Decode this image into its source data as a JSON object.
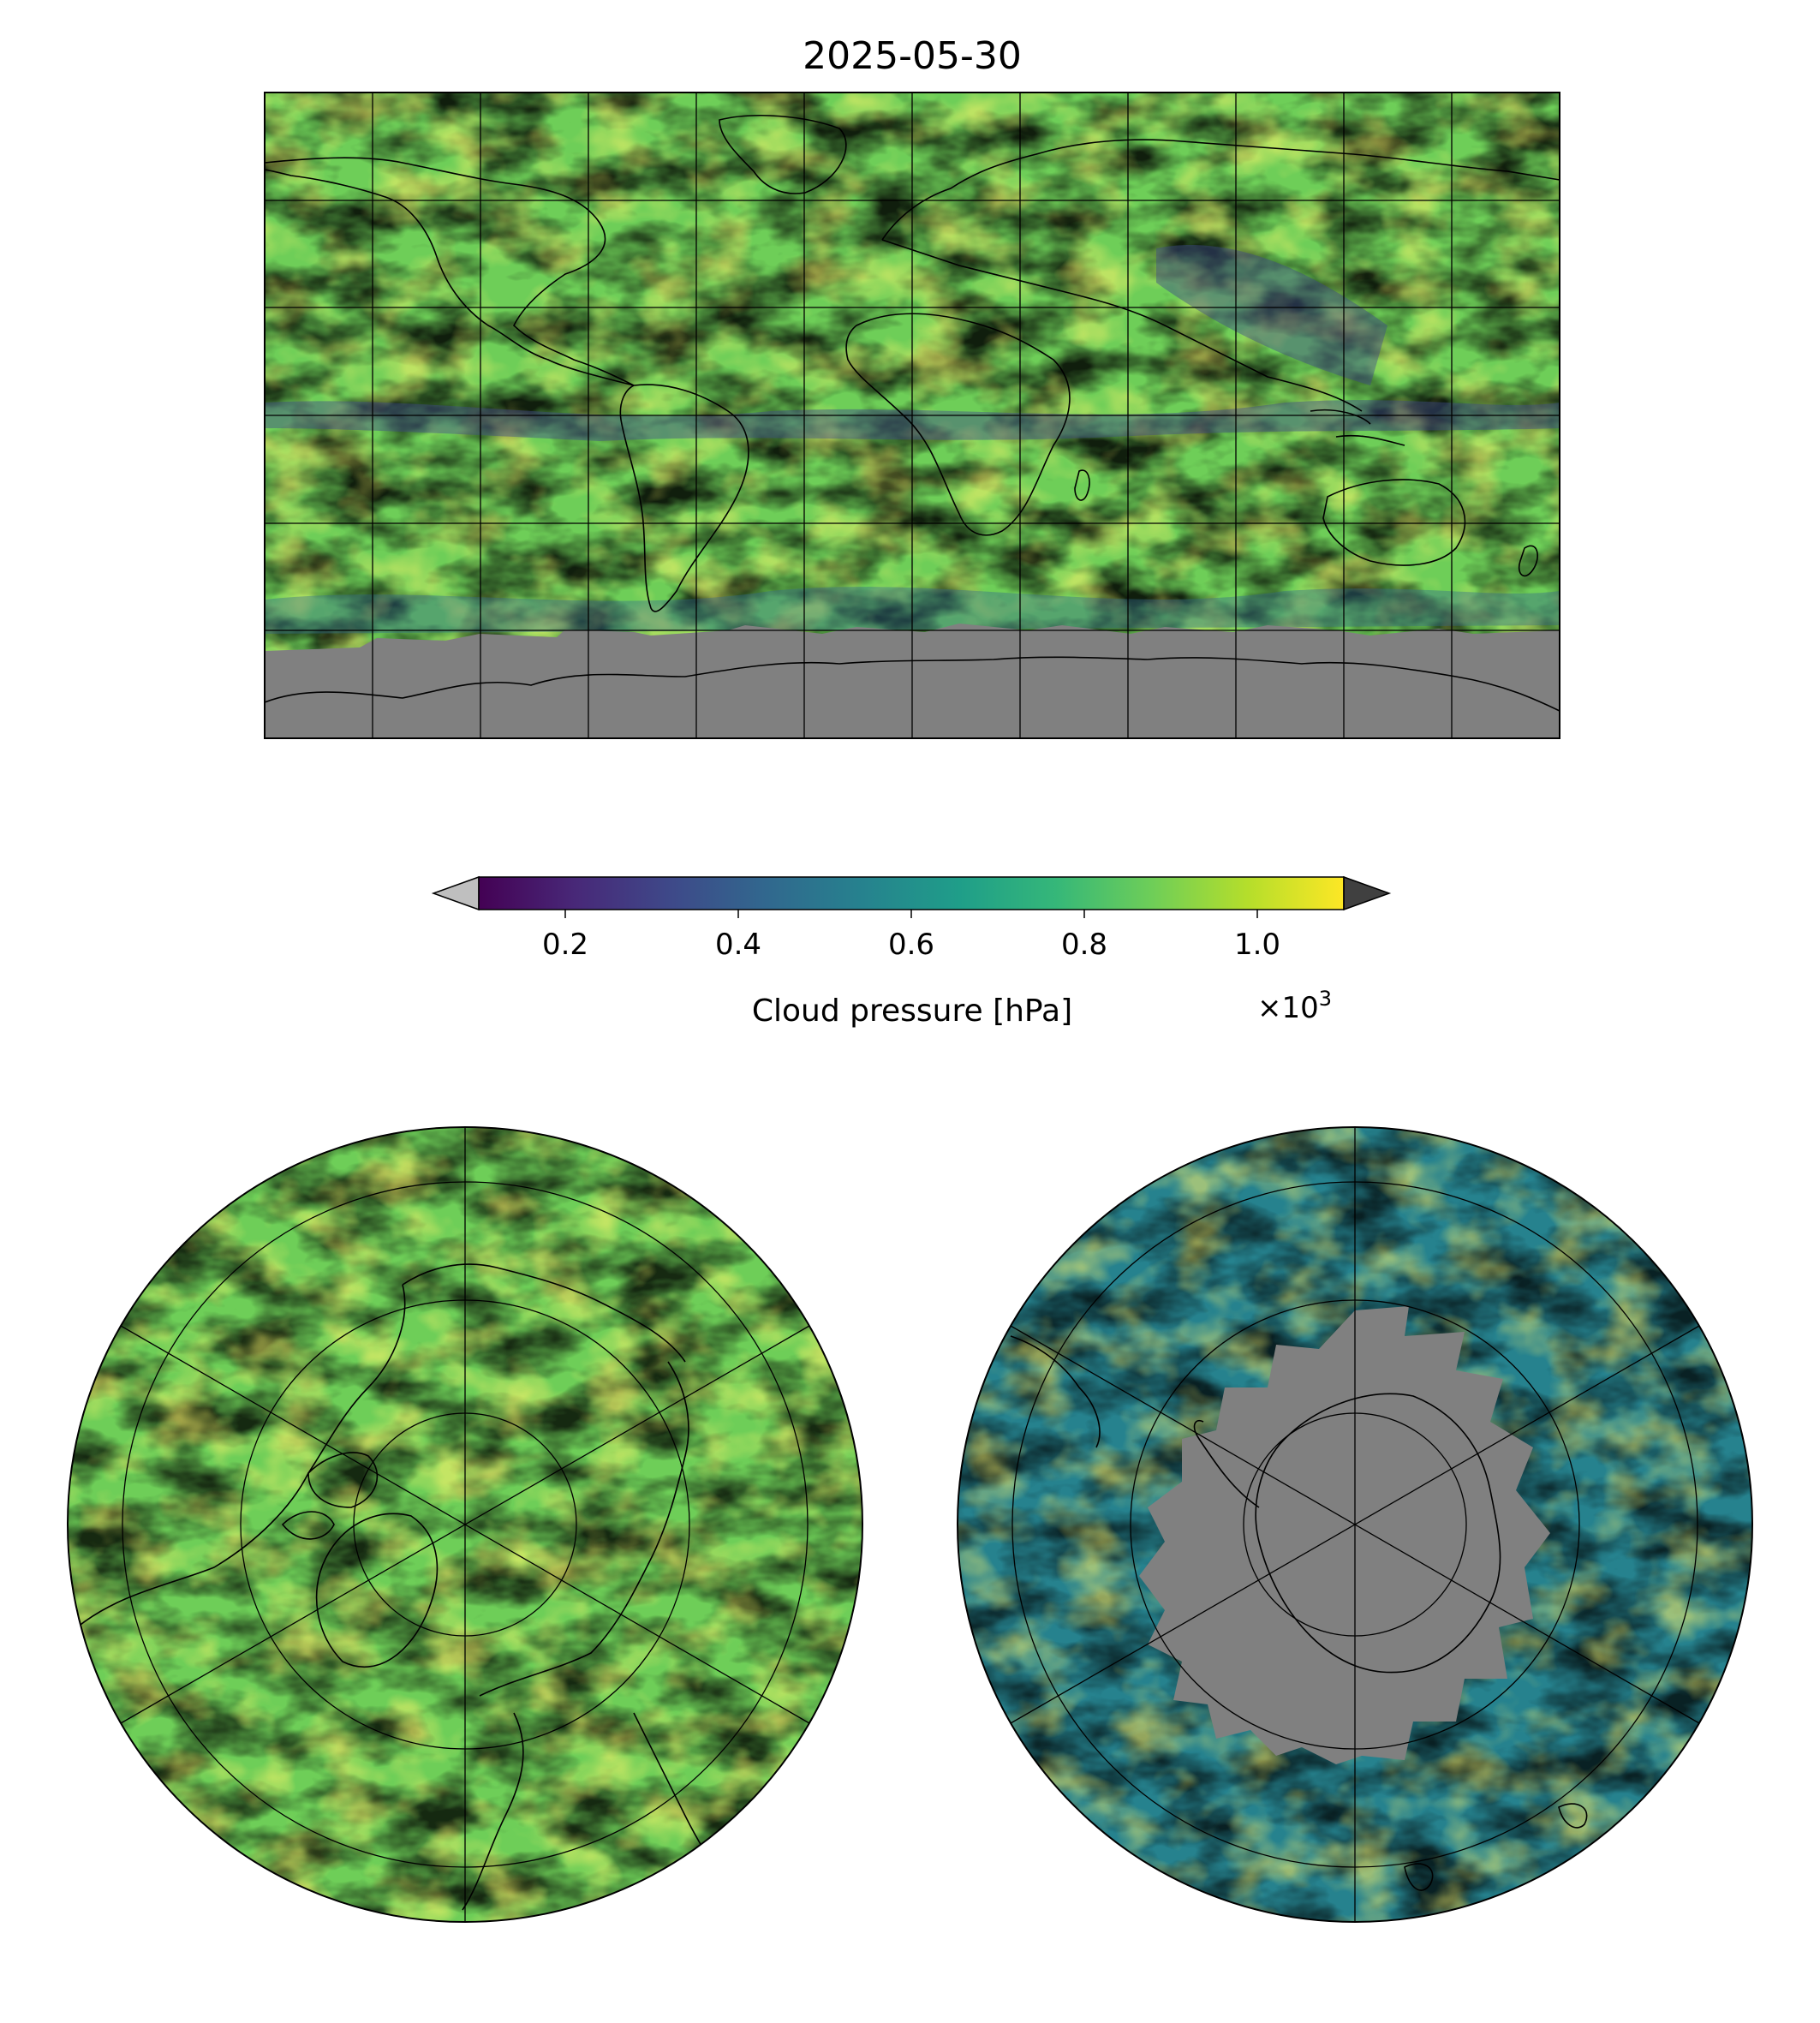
{
  "figure": {
    "title": "2025-05-30"
  },
  "colorbar": {
    "label": "Cloud pressure [hPa]",
    "multiplier_base": "×10",
    "multiplier_exp": "3",
    "ticks": [
      {
        "value": 0.2,
        "label": "0.2"
      },
      {
        "value": 0.4,
        "label": "0.4"
      },
      {
        "value": 0.6,
        "label": "0.6"
      },
      {
        "value": 0.8,
        "label": "0.8"
      },
      {
        "value": 1.0,
        "label": "1.0"
      }
    ],
    "vmin": 0.1,
    "vmax": 1.1,
    "extend": "both",
    "under_color": "#bfbfbf",
    "over_color": "#404040",
    "colormap": "viridis",
    "stops": [
      "#440154",
      "#482878",
      "#3e4989",
      "#31688e",
      "#26828e",
      "#1f9e89",
      "#35b779",
      "#6ece58",
      "#b5de2b",
      "#fde725"
    ]
  },
  "maps": {
    "global": {
      "projection": "plate carree",
      "lon_range": [
        -180,
        180
      ],
      "lat_range": [
        -90,
        90
      ],
      "gridline_spacing_deg": 30
    },
    "north_polar": {
      "projection": "north polar stereographic"
    },
    "south_polar": {
      "projection": "south polar stereographic"
    }
  },
  "colors": {
    "no_data": "#808080",
    "coastline": "#000000",
    "gridline": "#000000"
  }
}
